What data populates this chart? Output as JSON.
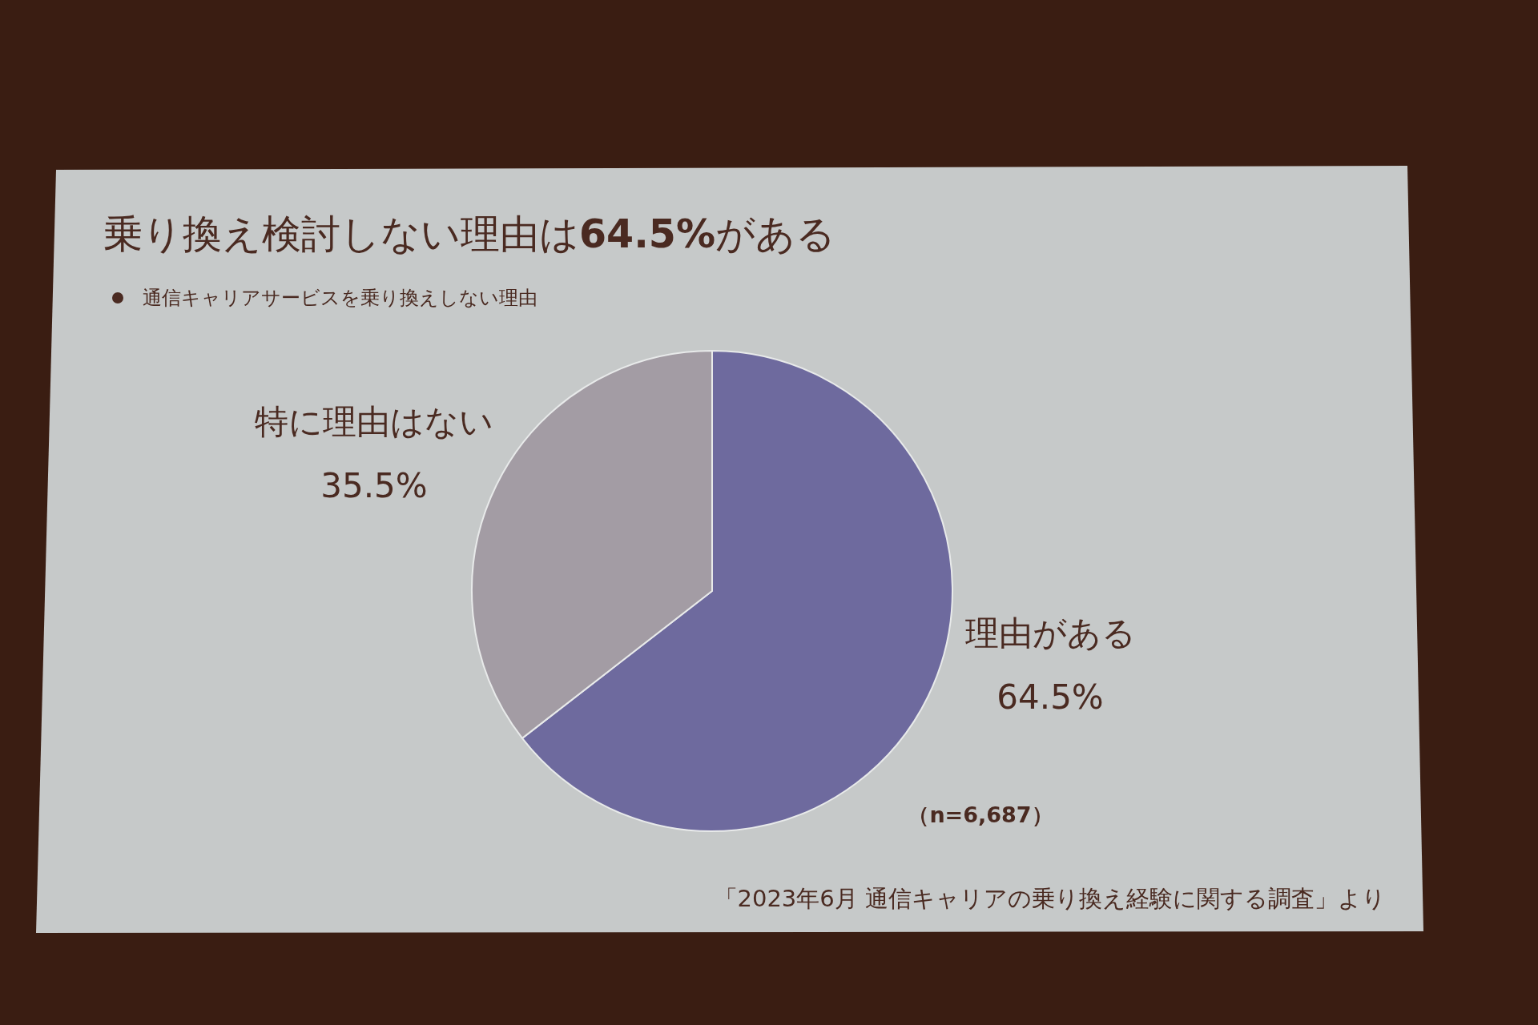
{
  "chart_data": {
    "type": "pie",
    "title": "乗り換え検討しない理由は**64.5%**がある",
    "subtitle": "通信キャリアサービスを乗り換えしない理由",
    "categories": [
      "理由がある",
      "特に理由はない"
    ],
    "values": [
      64.5,
      35.5
    ],
    "colors": [
      "#6e6a9e",
      "#a39ca4"
    ],
    "value_labels": [
      "64.5%",
      "35.5%"
    ],
    "annotations": [
      "（n=6,687）",
      "「2023年6月 通信キャリアの乗り換え経験に関する調査」より"
    ]
  }
}
